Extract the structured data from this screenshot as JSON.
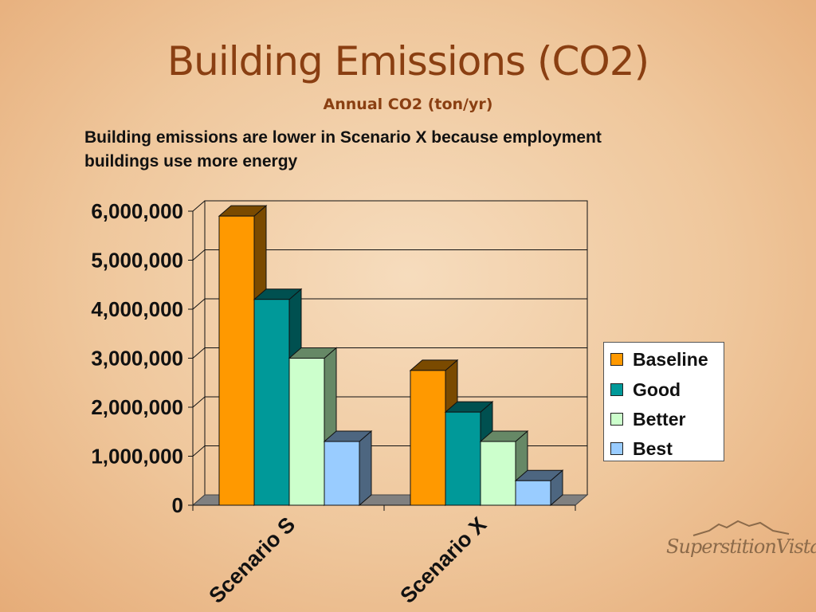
{
  "slide": {
    "title": "Building Emissions (CO2)",
    "subtitle": "Annual CO2 (ton/yr)",
    "caption_line1": "Building emissions are lower in Scenario X because employment",
    "caption_line2": "buildings use more energy",
    "logo_text": "SuperstitionVistas"
  },
  "chart_data": {
    "type": "bar",
    "title": "Annual CO2 (ton/yr)",
    "categories": [
      "Scenario S",
      "Scenario X"
    ],
    "series": [
      {
        "name": "Baseline",
        "values": [
          5900000,
          2750000
        ],
        "color": "#ff9900",
        "side": "#7a4a00"
      },
      {
        "name": "Good",
        "values": [
          4200000,
          1900000
        ],
        "color": "#009999",
        "side": "#005050"
      },
      {
        "name": "Better",
        "values": [
          3000000,
          1300000
        ],
        "color": "#ccffcc",
        "side": "#668866"
      },
      {
        "name": "Best",
        "values": [
          1300000,
          500000
        ],
        "color": "#99ccff",
        "side": "#4d6680"
      }
    ],
    "yticks": [
      "0",
      "1,000,000",
      "2,000,000",
      "3,000,000",
      "4,000,000",
      "5,000,000",
      "6,000,000"
    ],
    "ylim": [
      0,
      6000000
    ],
    "grid": true,
    "legend_position": "right",
    "chart_style": "3d-clustered-column"
  }
}
